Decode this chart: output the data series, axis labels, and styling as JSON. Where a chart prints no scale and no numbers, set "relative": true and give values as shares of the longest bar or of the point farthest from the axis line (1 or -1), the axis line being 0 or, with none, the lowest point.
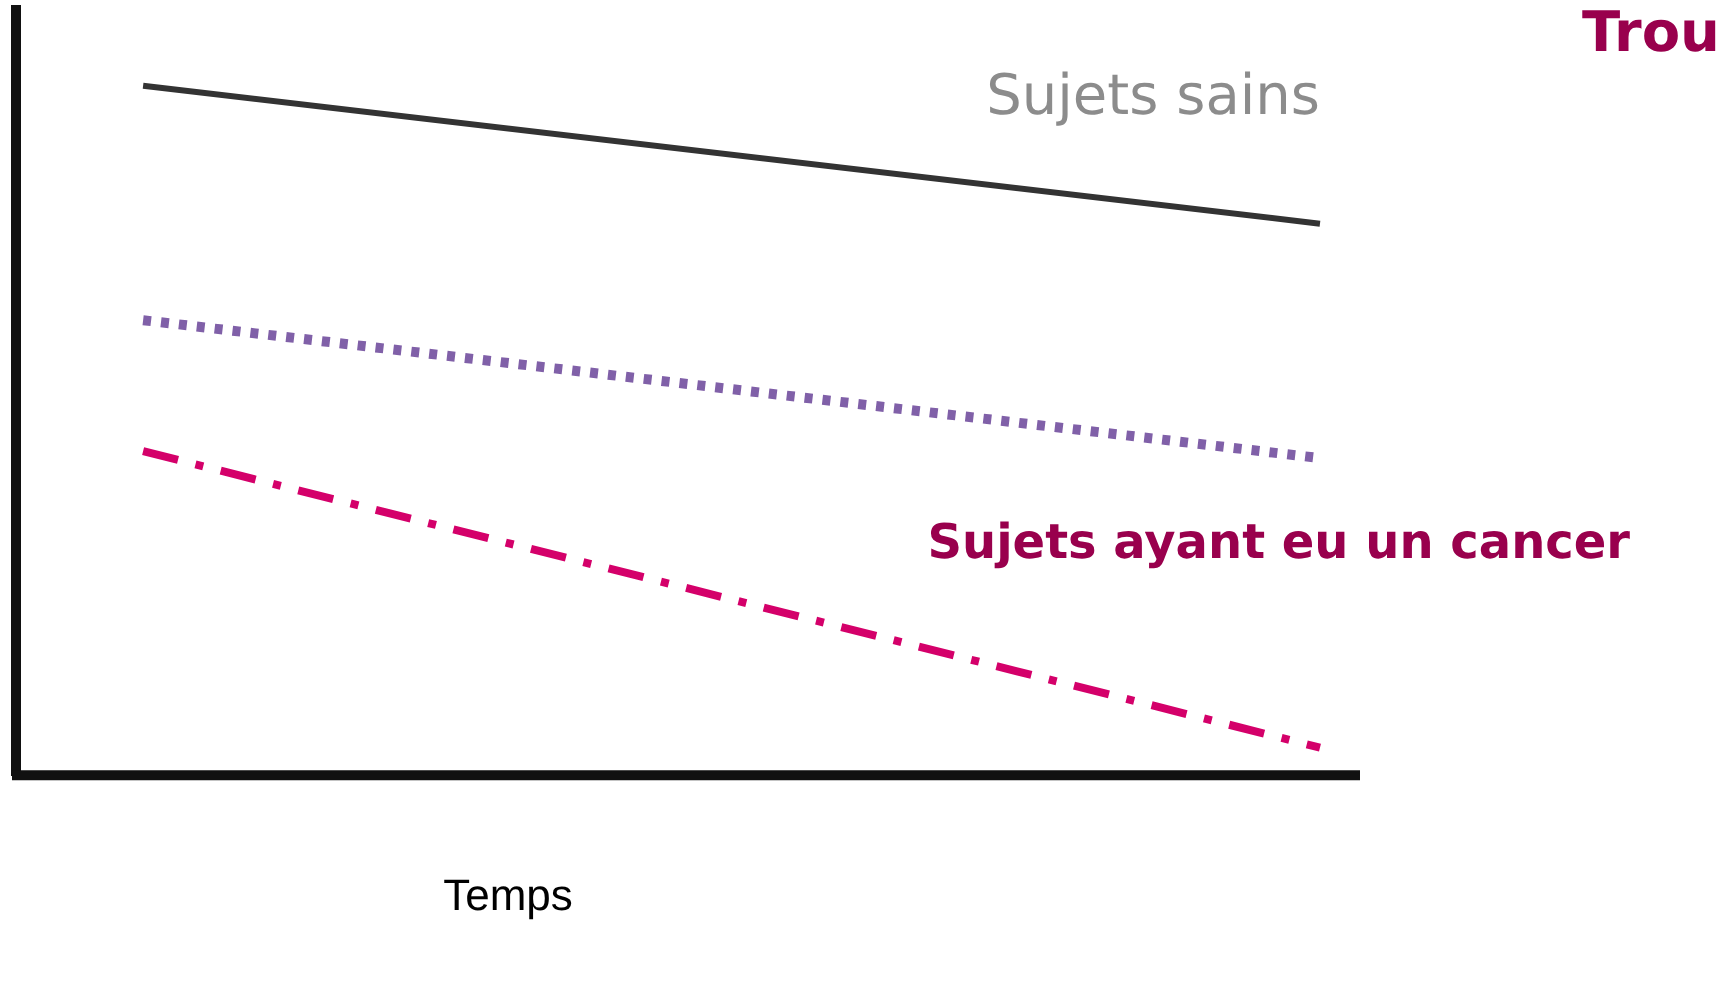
{
  "chart_data": {
    "type": "line",
    "relative": true,
    "xlabel": "Temps",
    "categories": [
      null,
      null
    ],
    "legend": false,
    "marker": "none",
    "annotations": [
      "Trou"
    ],
    "ref_lines": [
      {
        "axis": "y",
        "value": 0,
        "color": "#111111"
      }
    ],
    "series": [
      {
        "name": "Sujets sains",
        "color": "#333333",
        "line_style": "solid",
        "values": [
          1,
          0.8
        ]
      },
      {
        "color": "#8060a8",
        "line_style": "dotted",
        "values": [
          0.66,
          0.46
        ]
      },
      {
        "name": "Sujets ayant eu un cancer",
        "color": "#d4006a",
        "line_style": "dashed",
        "values": [
          0.47,
          0.04
        ]
      }
    ]
  }
}
